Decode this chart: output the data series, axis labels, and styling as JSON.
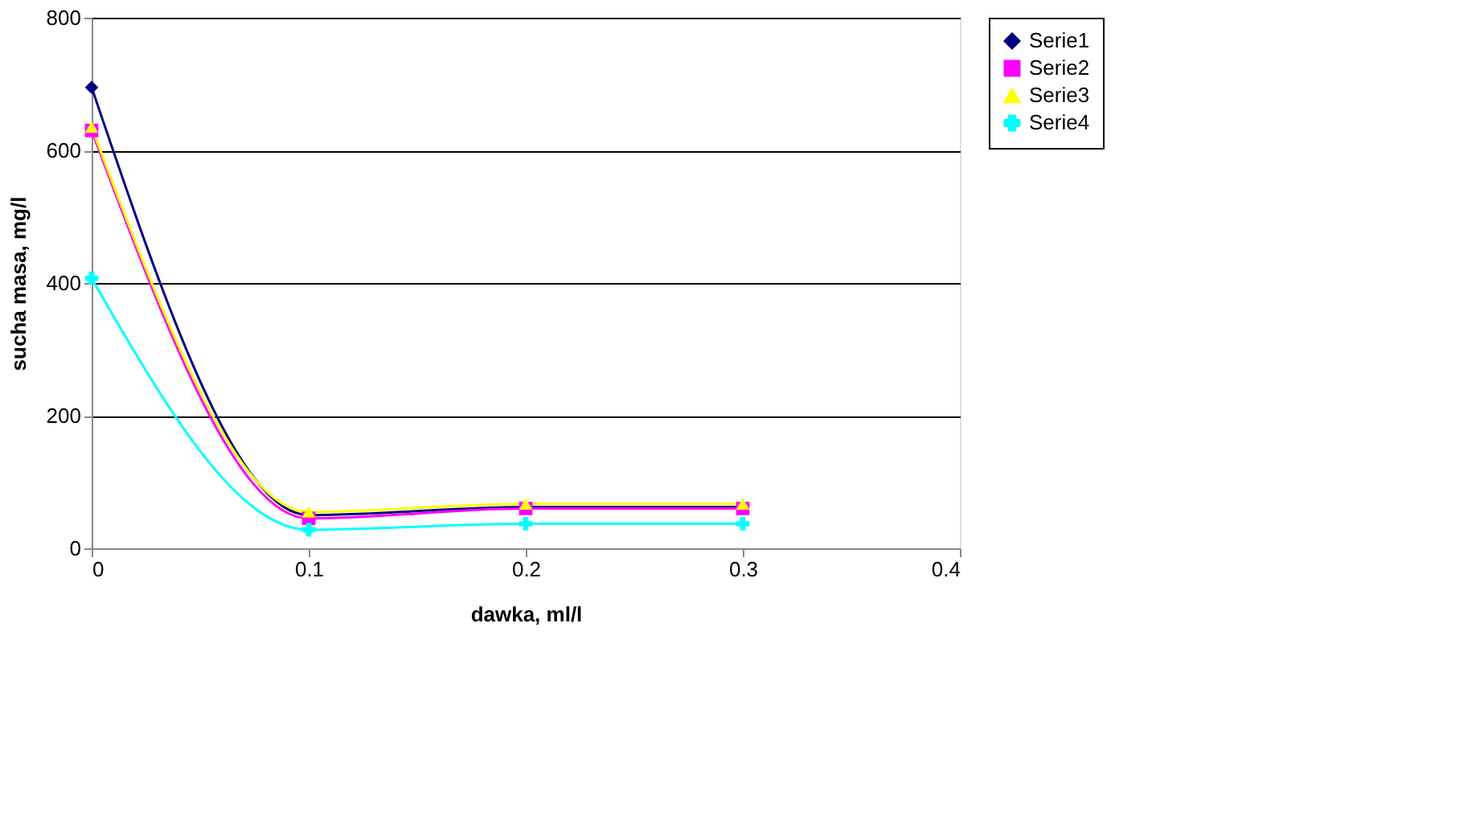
{
  "chart_data": {
    "type": "line",
    "xlabel": "dawka, ml/l",
    "ylabel": "sucha masa, mg/l",
    "x": [
      0,
      0.1,
      0.2,
      0.3
    ],
    "series": [
      {
        "name": "Serie1",
        "color": "#000080",
        "marker": "diamond",
        "values": [
          695,
          50,
          62,
          62
        ]
      },
      {
        "name": "Serie2",
        "color": "#ff00ff",
        "marker": "square",
        "values": [
          630,
          45,
          60,
          60
        ]
      },
      {
        "name": "Serie3",
        "color": "#ffff00",
        "marker": "triangle",
        "values": [
          635,
          55,
          67,
          67
        ]
      },
      {
        "name": "Serie4",
        "color": "#00ffff",
        "marker": "cross",
        "values": [
          407,
          28,
          37,
          37
        ]
      }
    ],
    "xlim": [
      0,
      0.4
    ],
    "xticks": [
      0,
      0.1,
      0.2,
      0.3,
      0.4
    ],
    "ylim": [
      0,
      800
    ],
    "yticks": [
      0,
      200,
      400,
      600,
      800
    ],
    "grid": "y",
    "legend": "right",
    "line_style": "solid"
  }
}
